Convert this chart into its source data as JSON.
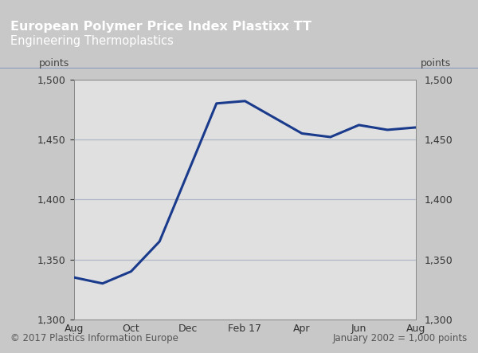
{
  "title_line1": "European Polymer Price Index Plastixx TT",
  "title_line2": "Engineering Thermoplastics",
  "header_bg_color": "#1e3494",
  "header_text_color": "#ffffff",
  "outer_bg_color": "#c8c8c8",
  "plot_bg_color": "#e0e0e0",
  "line_color": "#1a3a8c",
  "line_width": 2.2,
  "x_labels": [
    "Aug",
    "Oct",
    "Dec",
    "Feb 17",
    "Apr",
    "Jun",
    "Aug"
  ],
  "x_tick_positions": [
    0,
    2,
    4,
    6,
    8,
    10,
    12
  ],
  "y_data": [
    1335,
    1330,
    1340,
    1365,
    1480,
    1482,
    1455,
    1452,
    1462,
    1458,
    1460
  ],
  "x_data": [
    0,
    1,
    2,
    3,
    5,
    6,
    8,
    9,
    10,
    11,
    12
  ],
  "ylim": [
    1300,
    1500
  ],
  "yticks": [
    1300,
    1350,
    1400,
    1450,
    1500
  ],
  "ylabel_left": "points",
  "ylabel_right": "points",
  "footer_left": "© 2017 Plastics Information Europe",
  "footer_right": "January 2002 = 1,000 points",
  "footer_text_color": "#555555",
  "grid_color": "#b0b8c8",
  "spine_color": "#888888"
}
